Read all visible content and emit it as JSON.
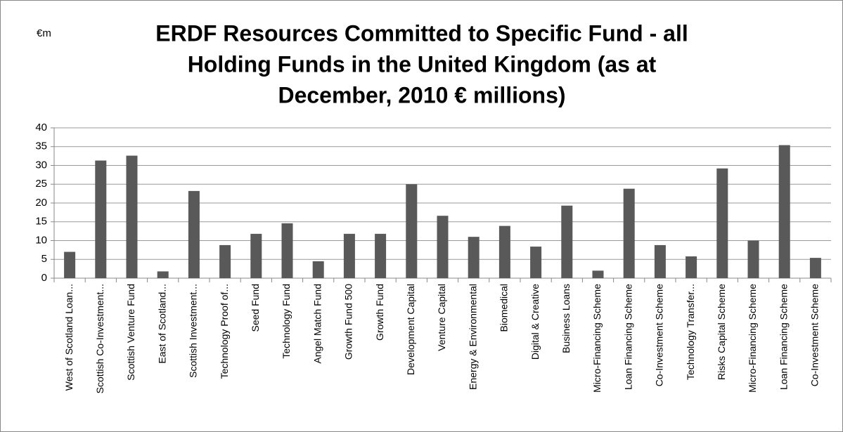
{
  "chart_data": {
    "type": "bar",
    "title_lines": [
      "ERDF Resources Committed to Specific Fund - all",
      "Holding Funds in the United Kingdom (as at",
      "December, 2010 € millions)"
    ],
    "ylabel": "€m",
    "categories": [
      "West of Scotland Loan...",
      "Scottish Co-Investment...",
      "Scottish Venture Fund",
      "East of Scotland...",
      "Scottish Investment...",
      "Technology Proof of...",
      "Seed Fund",
      "Technology Fund",
      "Angel Match Fund",
      "Growth Fund 500",
      "Growth Fund",
      "Development Capital",
      "Venture Capital",
      "Energy & Environmental",
      "Biomedical",
      "Digital & Creative",
      "Business Loans",
      "Micro-Financing Scheme",
      "Loan Financing Scheme",
      "Co-Investment Scheme",
      "Technology Transfer...",
      "Risks Capital Scheme",
      "Micro-Financing Scheme",
      "Loan Financing Scheme",
      "Co-Investment Scheme"
    ],
    "values": [
      7,
      31.3,
      32.6,
      1.8,
      23.2,
      8.8,
      11.8,
      14.6,
      4.5,
      11.8,
      11.8,
      25,
      16.6,
      11,
      13.9,
      8.4,
      19.3,
      2,
      23.8,
      8.8,
      5.8,
      29.2,
      10,
      35.4,
      5.4
    ],
    "color": "#595959",
    "ylim": [
      0,
      40
    ],
    "yticks": [
      0,
      5,
      10,
      15,
      20,
      25,
      30,
      35,
      40
    ],
    "grid": true
  }
}
